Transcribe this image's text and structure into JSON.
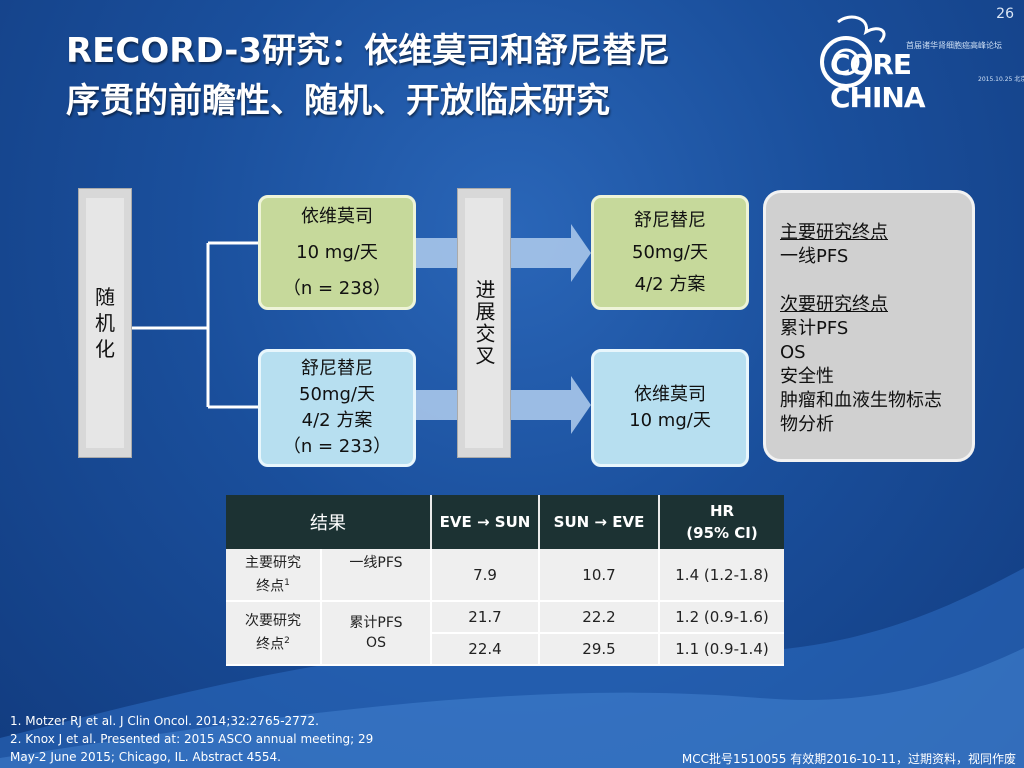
{
  "page_number": "26",
  "title": {
    "line1": "RECORD-3研究：依维莫司和舒尼替尼",
    "line2": "序贯的前瞻性、随机、开放临床研究"
  },
  "logo": {
    "core": "CORE CHINA",
    "subtitle": "首届诸华肾细胞癌高峰论坛",
    "date": "2015.10.25 北京"
  },
  "diagram": {
    "randomize": [
      "随",
      "机",
      "化"
    ],
    "arm1": [
      "依维莫司",
      "10 mg/天",
      "（n = 238）"
    ],
    "arm2": [
      "舒尼替尼",
      "50mg/天",
      "4/2 方案",
      "（n = 233）"
    ],
    "crossover": "进展交叉",
    "arm1_next": [
      "舒尼替尼",
      "50mg/天",
      "4/2 方案"
    ],
    "arm2_next": [
      "依维莫司",
      "10 mg/天"
    ],
    "endpoints": {
      "primary_head": "主要研究终点",
      "primary_items": [
        "一线PFS"
      ],
      "secondary_head": "次要研究终点",
      "secondary_items": [
        "累计PFS",
        "OS",
        "安全性",
        "肿瘤和血液生物标志",
        "物分析"
      ]
    }
  },
  "table": {
    "header": [
      "结果",
      "EVE → SUN",
      "SUN → EVE",
      "HR",
      "(95% CI)"
    ],
    "rows": [
      {
        "group": "主要研究",
        "group2": "终点",
        "sup": "1",
        "metric": "一线PFS",
        "eve_sun": "7.9",
        "sun_eve": "10.7",
        "hr": "1.4 (1.2-1.8)"
      },
      {
        "group": "次要研究",
        "group2": "终点",
        "sup": "2",
        "metric": "累计PFS",
        "eve_sun": "21.7",
        "sun_eve": "22.2",
        "hr": "1.2 (0.9-1.6)"
      },
      {
        "metric": "OS",
        "eve_sun": "22.4",
        "sun_eve": "29.5",
        "hr": "1.1 (0.9-1.4)"
      }
    ]
  },
  "references": [
    "1. Motzer RJ et al. J Clin Oncol. 2014;32:2765-2772.",
    "2. Knox J et al. Presented at: 2015 ASCO annual meeting; 29",
    "May-2 June 2015; Chicago, IL. Abstract 4554."
  ],
  "footer_note": "MCC批号1510055 有效期2016-10-11，过期资料，视同作废",
  "colors": {
    "background": "#1a4f9c",
    "green_box": "#c6d99b",
    "blue_box": "#b7dff0",
    "table_header": "#1c3233",
    "arrow": "#a9c6ea"
  }
}
